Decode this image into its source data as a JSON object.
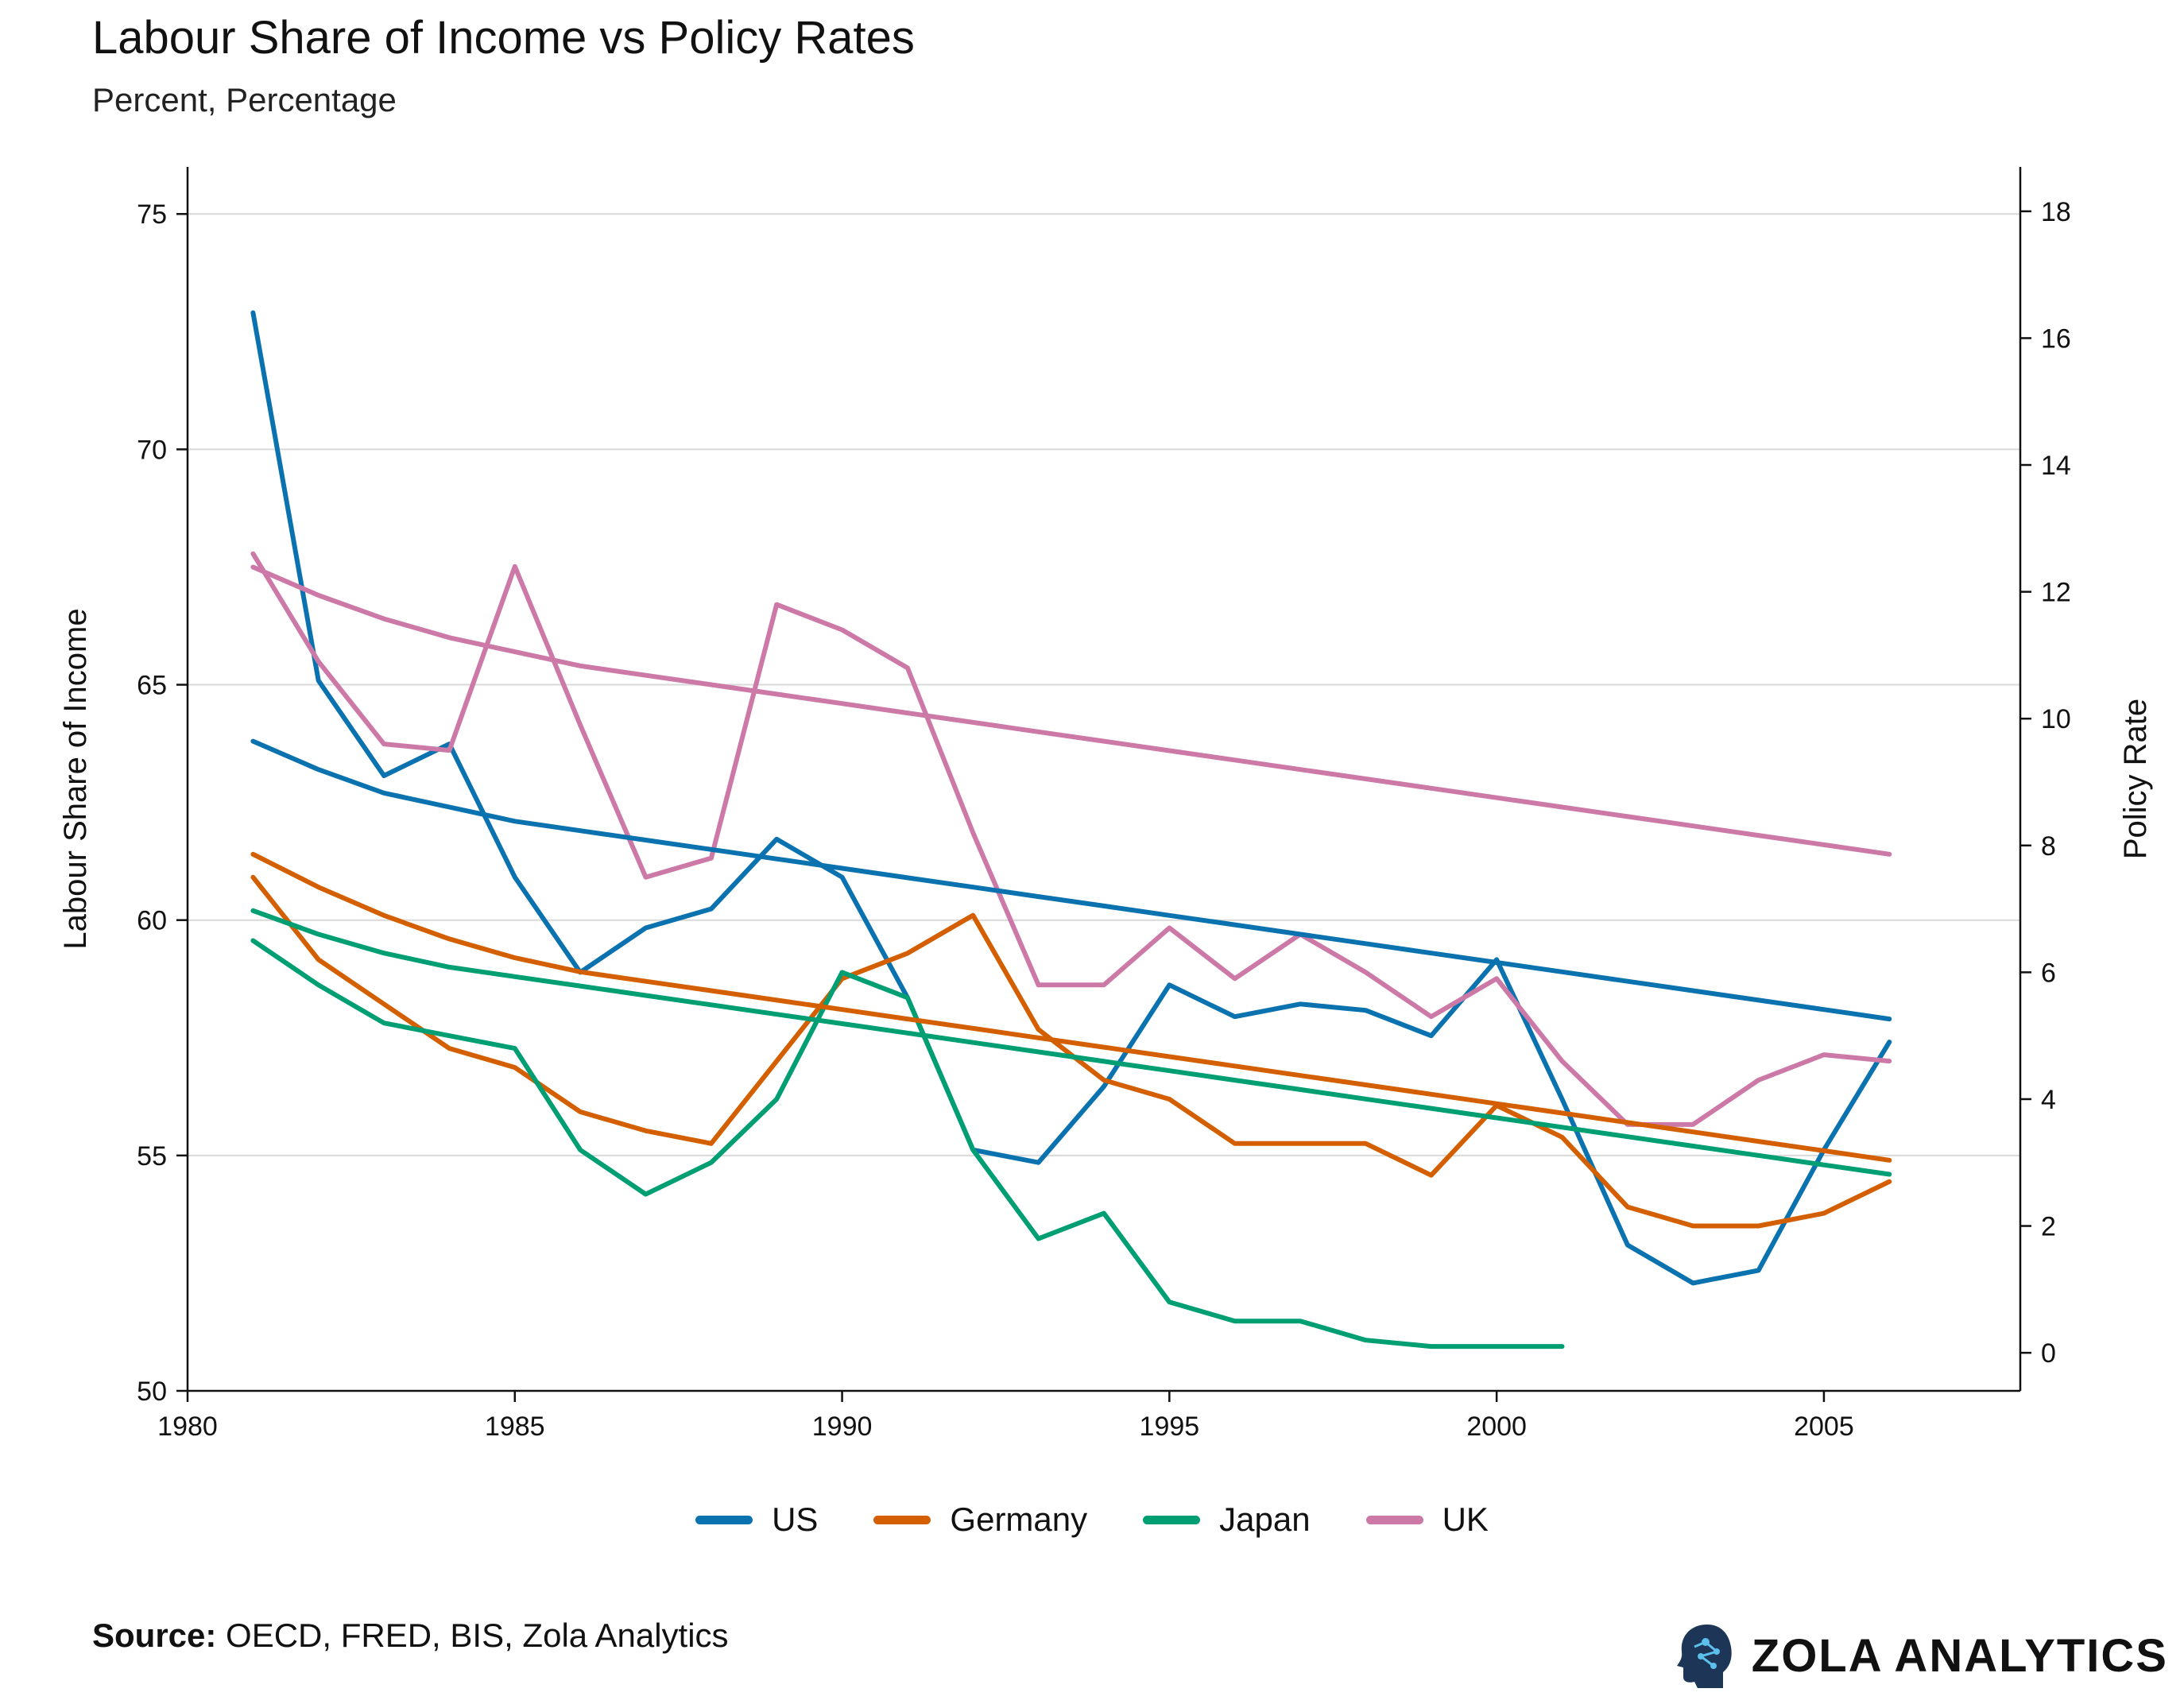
{
  "header": {
    "title": "Labour Share of Income vs Policy Rates",
    "subtitle": "Percent, Percentage"
  },
  "footer": {
    "source_label": "Source:",
    "source_text": "OECD, FRED, BIS, Zola Analytics",
    "brand": "ZOLA ANALYTICS",
    "brand_icon": "head-circuit-logo-icon"
  },
  "chart_data": {
    "type": "line",
    "title": "Labour Share of Income vs Policy Rates",
    "subtitle": "Percent, Percentage",
    "xlabel": "",
    "ylabel": "Labour Share of Income",
    "y2label": "Policy Rate",
    "xlim": [
      1980,
      2008
    ],
    "ylim": [
      50,
      76
    ],
    "y2lim": [
      -0.6,
      18.7
    ],
    "x_ticks": [
      1980,
      1985,
      1990,
      1995,
      2000,
      2005
    ],
    "y_ticks": [
      50,
      55,
      60,
      65,
      70,
      75
    ],
    "y2_ticks": [
      0,
      2,
      4,
      6,
      8,
      10,
      12,
      14,
      16,
      18
    ],
    "grid": "horizontal",
    "legend_position": "bottom",
    "legend": [
      "US",
      "Germany",
      "Japan",
      "UK"
    ],
    "colors": {
      "US": "#0b72b0",
      "Germany": "#d45f00",
      "Japan": "#009e73",
      "UK": "#cc79a7"
    },
    "series": [
      {
        "name": "US",
        "axis": "right",
        "kind": "policy_rate",
        "x": [
          1981,
          1982,
          1983,
          1984,
          1985,
          1986,
          1987,
          1988,
          1989,
          1990,
          1991,
          1992,
          1993,
          1994,
          1995,
          1996,
          1997,
          1998,
          1999,
          2000,
          2001,
          2002,
          2003,
          2004,
          2005,
          2006
        ],
        "y": [
          16.4,
          10.6,
          9.1,
          9.6,
          7.5,
          6.0,
          6.7,
          7.0,
          8.1,
          7.5,
          5.6,
          3.2,
          3.0,
          4.2,
          5.8,
          5.3,
          5.5,
          5.4,
          5.0,
          6.2,
          4.0,
          1.7,
          1.1,
          1.3,
          3.2,
          4.9
        ]
      },
      {
        "name": "Germany",
        "axis": "right",
        "kind": "policy_rate",
        "x": [
          1981,
          1982,
          1983,
          1984,
          1985,
          1986,
          1987,
          1988,
          1989,
          1990,
          1991,
          1992,
          1993,
          1994,
          1995,
          1996,
          1997,
          1998,
          1999,
          2000,
          2001,
          2002,
          2003,
          2004,
          2005,
          2006
        ],
        "y": [
          7.5,
          6.2,
          5.5,
          4.8,
          4.5,
          3.8,
          3.5,
          3.3,
          4.6,
          5.9,
          6.3,
          6.9,
          5.1,
          4.3,
          4.0,
          3.3,
          3.3,
          3.3,
          2.8,
          3.9,
          3.4,
          2.3,
          2.0,
          2.0,
          2.2,
          2.7
        ]
      },
      {
        "name": "Japan",
        "axis": "right",
        "kind": "policy_rate",
        "x": [
          1981,
          1982,
          1983,
          1984,
          1985,
          1986,
          1987,
          1988,
          1989,
          1990,
          1991,
          1992,
          1993,
          1994,
          1995,
          1996,
          1997,
          1998,
          1999,
          2000,
          2001
        ],
        "y": [
          6.5,
          5.8,
          5.2,
          5.0,
          4.8,
          3.2,
          2.5,
          3.0,
          4.0,
          6.0,
          5.6,
          3.2,
          1.8,
          2.2,
          0.8,
          0.5,
          0.5,
          0.2,
          0.1,
          0.1,
          0.1
        ]
      },
      {
        "name": "UK",
        "axis": "right",
        "kind": "policy_rate",
        "x": [
          1981,
          1982,
          1983,
          1984,
          1985,
          1986,
          1987,
          1988,
          1989,
          1990,
          1991,
          1992,
          1993,
          1994,
          1995,
          1996,
          1997,
          1998,
          1999,
          2000,
          2001,
          2002,
          2003,
          2004,
          2005,
          2006
        ],
        "y": [
          12.6,
          10.9,
          9.6,
          9.5,
          12.4,
          9.9,
          7.5,
          7.8,
          11.8,
          11.4,
          10.8,
          8.2,
          5.8,
          5.8,
          6.7,
          5.9,
          6.6,
          6.0,
          5.3,
          5.9,
          4.6,
          3.6,
          3.6,
          4.3,
          4.7,
          4.6
        ]
      },
      {
        "name": "US",
        "axis": "left",
        "kind": "labour_share",
        "x": [
          1981,
          1982,
          1983,
          1984,
          1985,
          1986,
          1987,
          1988,
          1989,
          1990,
          1991,
          1992,
          1993,
          1994,
          1995,
          1996,
          1997,
          1998,
          1999,
          2000,
          2001,
          2002,
          2003,
          2004,
          2005,
          2006
        ],
        "y": [
          63.8,
          63.2,
          62.7,
          62.4,
          62.1,
          61.9,
          61.7,
          61.5,
          61.3,
          61.1,
          60.9,
          60.7,
          60.5,
          60.3,
          60.1,
          59.9,
          59.7,
          59.5,
          59.3,
          59.1,
          58.9,
          58.7,
          58.5,
          58.3,
          58.1,
          57.9
        ]
      },
      {
        "name": "Germany",
        "axis": "left",
        "kind": "labour_share",
        "x": [
          1981,
          1982,
          1983,
          1984,
          1985,
          1986,
          1987,
          1988,
          1989,
          1990,
          1991,
          1992,
          1993,
          1994,
          1995,
          1996,
          1997,
          1998,
          1999,
          2000,
          2001,
          2002,
          2003,
          2004,
          2005,
          2006
        ],
        "y": [
          61.4,
          60.7,
          60.1,
          59.6,
          59.2,
          58.9,
          58.7,
          58.5,
          58.3,
          58.1,
          57.9,
          57.7,
          57.5,
          57.3,
          57.1,
          56.9,
          56.7,
          56.5,
          56.3,
          56.1,
          55.9,
          55.7,
          55.5,
          55.3,
          55.1,
          54.9
        ]
      },
      {
        "name": "Japan",
        "axis": "left",
        "kind": "labour_share",
        "x": [
          1981,
          1982,
          1983,
          1984,
          1985,
          1986,
          1987,
          1988,
          1989,
          1990,
          1991,
          1992,
          1993,
          1994,
          1995,
          1996,
          1997,
          1998,
          1999,
          2000,
          2001,
          2002,
          2003,
          2004,
          2005,
          2006
        ],
        "y": [
          60.2,
          59.7,
          59.3,
          59.0,
          58.8,
          58.6,
          58.4,
          58.2,
          58.0,
          57.8,
          57.6,
          57.4,
          57.2,
          57.0,
          56.8,
          56.6,
          56.4,
          56.2,
          56.0,
          55.8,
          55.6,
          55.4,
          55.2,
          55.0,
          54.8,
          54.6
        ]
      },
      {
        "name": "UK",
        "axis": "left",
        "kind": "labour_share",
        "x": [
          1981,
          1982,
          1983,
          1984,
          1985,
          1986,
          1987,
          1988,
          1989,
          1990,
          1991,
          1992,
          1993,
          1994,
          1995,
          1996,
          1997,
          1998,
          1999,
          2000,
          2001,
          2002,
          2003,
          2004,
          2005,
          2006
        ],
        "y": [
          67.5,
          66.9,
          66.4,
          66.0,
          65.7,
          65.4,
          65.2,
          65.0,
          64.8,
          64.6,
          64.4,
          64.2,
          64.0,
          63.8,
          63.6,
          63.4,
          63.2,
          63.0,
          62.8,
          62.6,
          62.4,
          62.2,
          62.0,
          61.8,
          61.6,
          61.4
        ]
      }
    ]
  }
}
